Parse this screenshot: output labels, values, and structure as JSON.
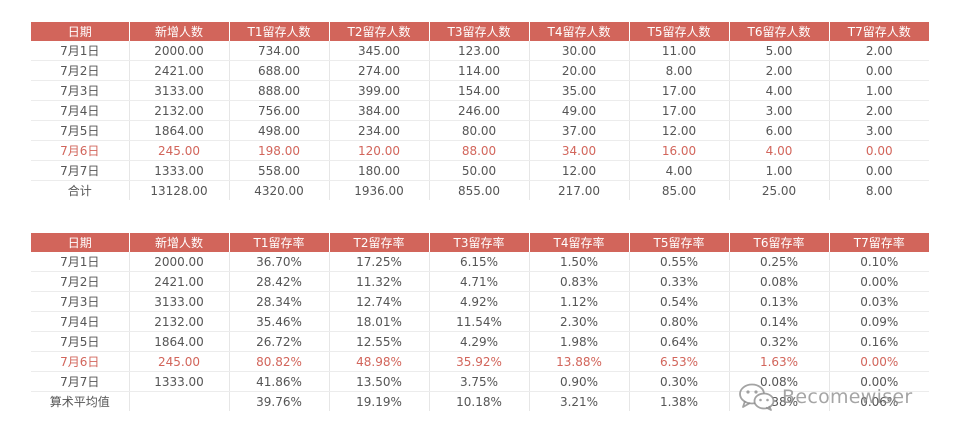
{
  "counts_table": {
    "headers": [
      "日期",
      "新增人数",
      "T1留存人数",
      "T2留存人数",
      "T3留存人数",
      "T4留存人数",
      "T5留存人数",
      "T6留存人数",
      "T7留存人数"
    ],
    "rows": [
      [
        "7月1日",
        "2000.00",
        "734.00",
        "345.00",
        "123.00",
        "30.00",
        "11.00",
        "5.00",
        "2.00"
      ],
      [
        "7月2日",
        "2421.00",
        "688.00",
        "274.00",
        "114.00",
        "20.00",
        "8.00",
        "2.00",
        "0.00"
      ],
      [
        "7月3日",
        "3133.00",
        "888.00",
        "399.00",
        "154.00",
        "35.00",
        "17.00",
        "4.00",
        "1.00"
      ],
      [
        "7月4日",
        "2132.00",
        "756.00",
        "384.00",
        "246.00",
        "49.00",
        "17.00",
        "3.00",
        "2.00"
      ],
      [
        "7月5日",
        "1864.00",
        "498.00",
        "234.00",
        "80.00",
        "37.00",
        "12.00",
        "6.00",
        "3.00"
      ],
      [
        "7月6日",
        "245.00",
        "198.00",
        "120.00",
        "88.00",
        "34.00",
        "16.00",
        "4.00",
        "0.00"
      ],
      [
        "7月7日",
        "1333.00",
        "558.00",
        "180.00",
        "50.00",
        "12.00",
        "4.00",
        "1.00",
        "0.00"
      ],
      [
        "合计",
        "13128.00",
        "4320.00",
        "1936.00",
        "855.00",
        "217.00",
        "85.00",
        "25.00",
        "8.00"
      ]
    ]
  },
  "rates_table": {
    "headers": [
      "日期",
      "新增人数",
      "T1留存率",
      "T2留存率",
      "T3留存率",
      "T4留存率",
      "T5留存率",
      "T6留存率",
      "T7留存率"
    ],
    "rows": [
      [
        "7月1日",
        "2000.00",
        "36.70%",
        "17.25%",
        "6.15%",
        "1.50%",
        "0.55%",
        "0.25%",
        "0.10%"
      ],
      [
        "7月2日",
        "2421.00",
        "28.42%",
        "11.32%",
        "4.71%",
        "0.83%",
        "0.33%",
        "0.08%",
        "0.00%"
      ],
      [
        "7月3日",
        "3133.00",
        "28.34%",
        "12.74%",
        "4.92%",
        "1.12%",
        "0.54%",
        "0.13%",
        "0.03%"
      ],
      [
        "7月4日",
        "2132.00",
        "35.46%",
        "18.01%",
        "11.54%",
        "2.30%",
        "0.80%",
        "0.14%",
        "0.09%"
      ],
      [
        "7月5日",
        "1864.00",
        "26.72%",
        "12.55%",
        "4.29%",
        "1.98%",
        "0.64%",
        "0.32%",
        "0.16%"
      ],
      [
        "7月6日",
        "245.00",
        "80.82%",
        "48.98%",
        "35.92%",
        "13.88%",
        "6.53%",
        "1.63%",
        "0.00%"
      ],
      [
        "7月7日",
        "1333.00",
        "41.86%",
        "13.50%",
        "3.75%",
        "0.90%",
        "0.30%",
        "0.08%",
        "0.00%"
      ],
      [
        "算术平均值",
        "",
        "39.76%",
        "19.19%",
        "10.18%",
        "3.21%",
        "1.38%",
        "0.38%",
        "0.06%"
      ]
    ]
  },
  "highlight_row_index": 5,
  "colors": {
    "header_bg": "#d2655b",
    "highlight_text": "#d2655b",
    "body_text": "#555555"
  },
  "watermark": {
    "icon": "wechat-icon",
    "text": "Becomewiser"
  }
}
